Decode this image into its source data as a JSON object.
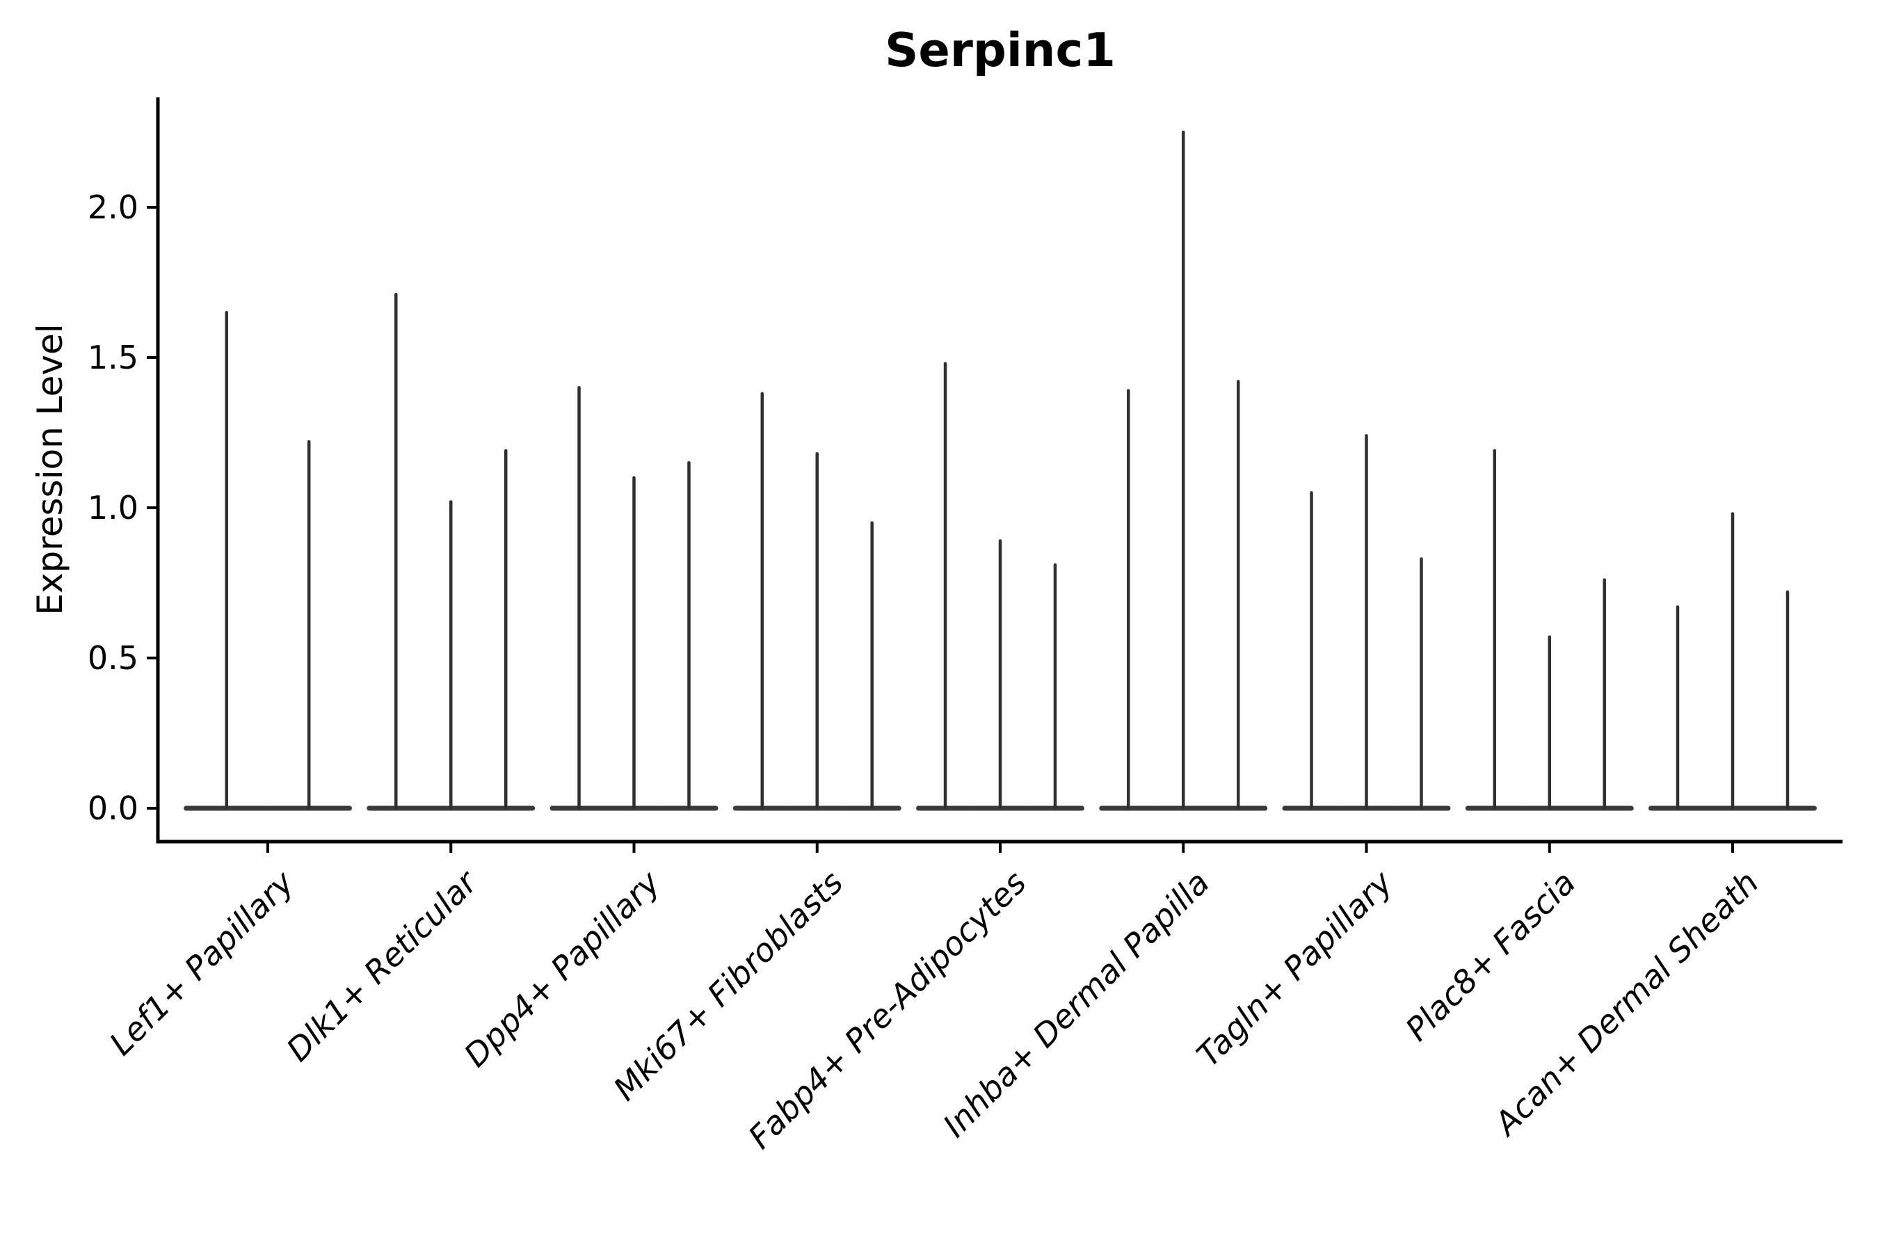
{
  "chart_data": {
    "type": "violin",
    "title": "Serpinc1",
    "ylabel": "Expression Level",
    "xlabel": "",
    "ylim": [
      -0.11,
      2.36
    ],
    "y_tick_labels": [
      "0.0",
      "0.5",
      "1.0",
      "1.5",
      "2.0"
    ],
    "y_tick_values": [
      0.0,
      0.5,
      1.0,
      1.5,
      2.0
    ],
    "categories": [
      "Lef1+ Papillary",
      "Dlk1+ Reticular",
      "Dpp4+ Papillary",
      "Mki67+ Fibroblasts",
      "Fabp4+ Pre-Adipocytes",
      "Inhba+ Dermal Papilla",
      "Tagln+ Papillary",
      "Plac8+ Fascia",
      "Acan+ Dermal Sheath"
    ],
    "violins_per_category": [
      2,
      3,
      3,
      3,
      3,
      3,
      3,
      3,
      3
    ],
    "violin_max_expression": [
      [
        1.65,
        1.22
      ],
      [
        1.71,
        1.02,
        1.19
      ],
      [
        1.4,
        1.1,
        1.15
      ],
      [
        1.38,
        1.18,
        0.95
      ],
      [
        1.48,
        0.89,
        0.81
      ],
      [
        1.39,
        2.25,
        1.42
      ],
      [
        1.05,
        1.24,
        0.83
      ],
      [
        1.19,
        0.57,
        0.76
      ],
      [
        0.67,
        0.98,
        0.72
      ]
    ],
    "violin_min_expression": 0.0,
    "style": {
      "violin_color": "#303030",
      "base_color": "#3a3a3a",
      "axis_color": "#000000",
      "text_color": "#000000",
      "background": "#ffffff",
      "x_label_rotation_deg": 45,
      "x_label_italic": true,
      "grid": "off",
      "legend": "none"
    }
  }
}
